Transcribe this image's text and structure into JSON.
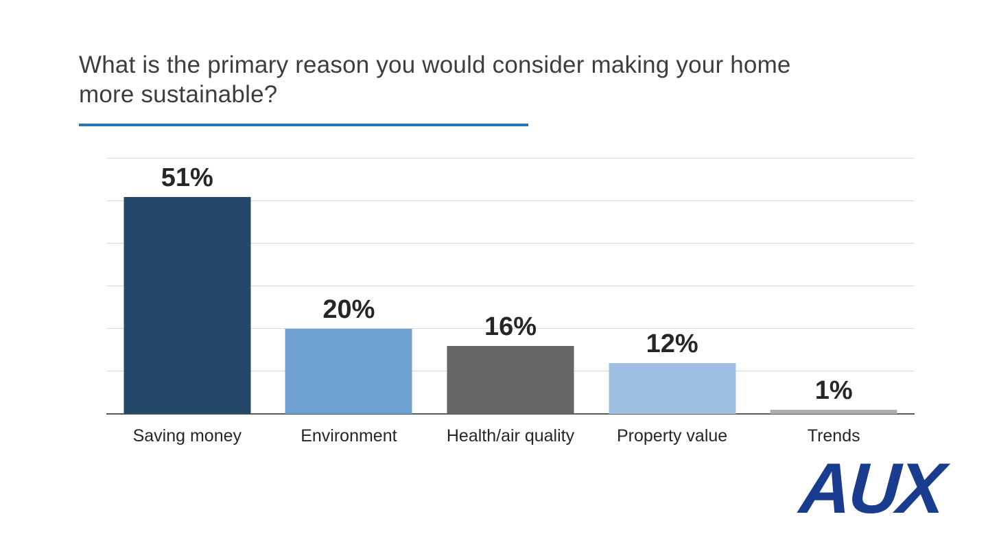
{
  "chart_data": {
    "type": "bar",
    "title": "What is the primary reason you would consider making your home more sustainable?",
    "title_lines": [
      "What is the primary reason you would consider making your home",
      "more sustainable?"
    ],
    "categories": [
      "Saving money",
      "Environment",
      "Health/air quality",
      "Property value",
      "Trends"
    ],
    "values": [
      51,
      20,
      16,
      12,
      1
    ],
    "value_labels": [
      "51%",
      "20%",
      "16%",
      "12%",
      "1%"
    ],
    "xlabel": "",
    "ylabel": "",
    "ylim": [
      0,
      60
    ],
    "gridline_interval": 10,
    "grid": true,
    "legend": false,
    "bar_colors": [
      "#24476A",
      "#6FA0D2",
      "#666666",
      "#9FC0E2",
      "#ADADAD"
    ]
  },
  "branding": {
    "logo_text": "AUX",
    "logo_color": "#1A3C8E"
  },
  "styles": {
    "background": "#FFFFFF",
    "title_color": "#3D3D3D",
    "title_underline_color": "#2E74B5",
    "gridline_color": "#D9D9D9",
    "axis_color": "#595959",
    "data_label_color": "#262626"
  }
}
